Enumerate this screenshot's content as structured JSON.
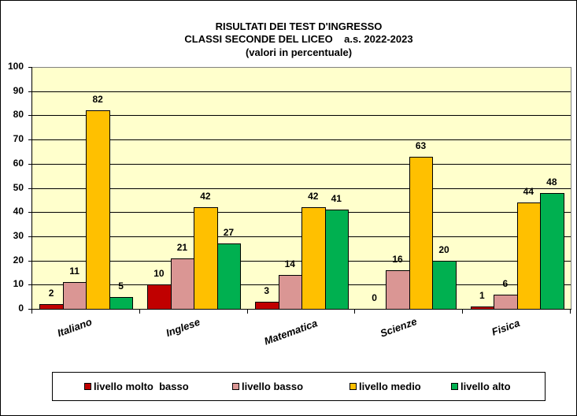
{
  "chart_data": {
    "type": "bar",
    "title": "RISULTATI DEI TEST D'INGRESSO",
    "subtitle": "CLASSI SECONDE DEL LICEO    a.s. 2022-2023",
    "subtitle2": "(valori in percentuale)",
    "xlabel": "",
    "ylabel": "",
    "ylim": [
      0,
      100
    ],
    "yticks": [
      "0",
      "10",
      "20",
      "30",
      "40",
      "50",
      "60",
      "70",
      "80",
      "90",
      "100"
    ],
    "grid": true,
    "legend_position": "bottom",
    "categories": [
      "Italiano",
      "Inglese",
      "Matematica",
      "Scienze",
      "Fisica"
    ],
    "series": [
      {
        "name": "livello molto  basso",
        "color": "#c00000",
        "values": [
          2,
          10,
          3,
          0,
          1
        ]
      },
      {
        "name": "livello basso",
        "color": "#da9694",
        "values": [
          11,
          21,
          14,
          16,
          6
        ]
      },
      {
        "name": "livello medio",
        "color": "#ffc000",
        "values": [
          82,
          42,
          42,
          63,
          44
        ]
      },
      {
        "name": "livello alto",
        "color": "#00b050",
        "values": [
          5,
          27,
          41,
          20,
          48
        ]
      }
    ],
    "plot_background": "#ffffcc"
  }
}
